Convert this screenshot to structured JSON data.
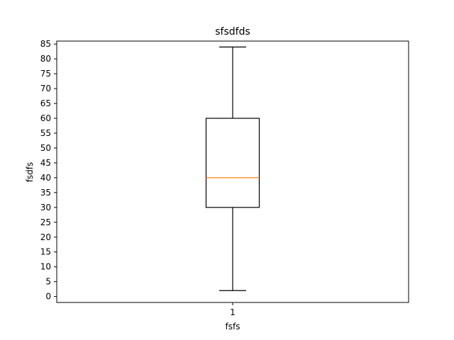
{
  "chart_data": {
    "type": "box",
    "title": "sfsdfds",
    "xlabel": "fsfs",
    "ylabel": "fsdfs",
    "categories": [
      "1"
    ],
    "boxes": [
      {
        "category": "1",
        "whisker_low": 2,
        "q1": 30,
        "median": 40,
        "q3": 60,
        "whisker_high": 84
      }
    ],
    "ylim": [
      -2,
      86
    ],
    "yticks": [
      0,
      5,
      10,
      15,
      20,
      25,
      30,
      35,
      40,
      45,
      50,
      55,
      60,
      65,
      70,
      75,
      80,
      85
    ],
    "grid": false,
    "colors": {
      "box": "#000000",
      "median": "#ff7f0e",
      "whisker": "#000000"
    }
  }
}
